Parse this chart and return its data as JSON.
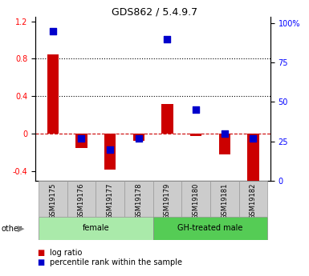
{
  "title": "GDS862 / 5.4.9.7",
  "samples": [
    "GSM19175",
    "GSM19176",
    "GSM19177",
    "GSM19178",
    "GSM19179",
    "GSM19180",
    "GSM19181",
    "GSM19182"
  ],
  "log_ratio": [
    0.85,
    -0.15,
    -0.38,
    -0.07,
    0.32,
    -0.02,
    -0.22,
    -0.52
  ],
  "percentile_rank": [
    95,
    27,
    20,
    27,
    90,
    45,
    30,
    27
  ],
  "groups": [
    {
      "label": "female",
      "indices": [
        0,
        1,
        2,
        3
      ],
      "color": "#aaeaaa"
    },
    {
      "label": "GH-treated male",
      "indices": [
        4,
        5,
        6,
        7
      ],
      "color": "#55cc55"
    }
  ],
  "ylim_left": [
    -0.5,
    1.25
  ],
  "ylim_right": [
    0,
    104.17
  ],
  "yticks_left": [
    -0.4,
    0.0,
    0.4,
    0.8,
    1.2
  ],
  "yticks_right": [
    0,
    25,
    50,
    75,
    100
  ],
  "ytick_labels_left": [
    "-0.4",
    "0",
    "0.4",
    "0.8",
    "1.2"
  ],
  "ytick_labels_right": [
    "0",
    "25",
    "50",
    "75",
    "100%"
  ],
  "hlines": [
    0.4,
    0.8
  ],
  "bar_color": "#cc0000",
  "dot_color": "#0000cc",
  "bar_width": 0.4,
  "dot_size": 30,
  "other_label": "other",
  "background_color": "#ffffff",
  "dashed_zero_color": "#cc0000",
  "dotted_line_color": "#000000",
  "sample_box_color": "#cccccc",
  "sample_box_edge": "#999999"
}
